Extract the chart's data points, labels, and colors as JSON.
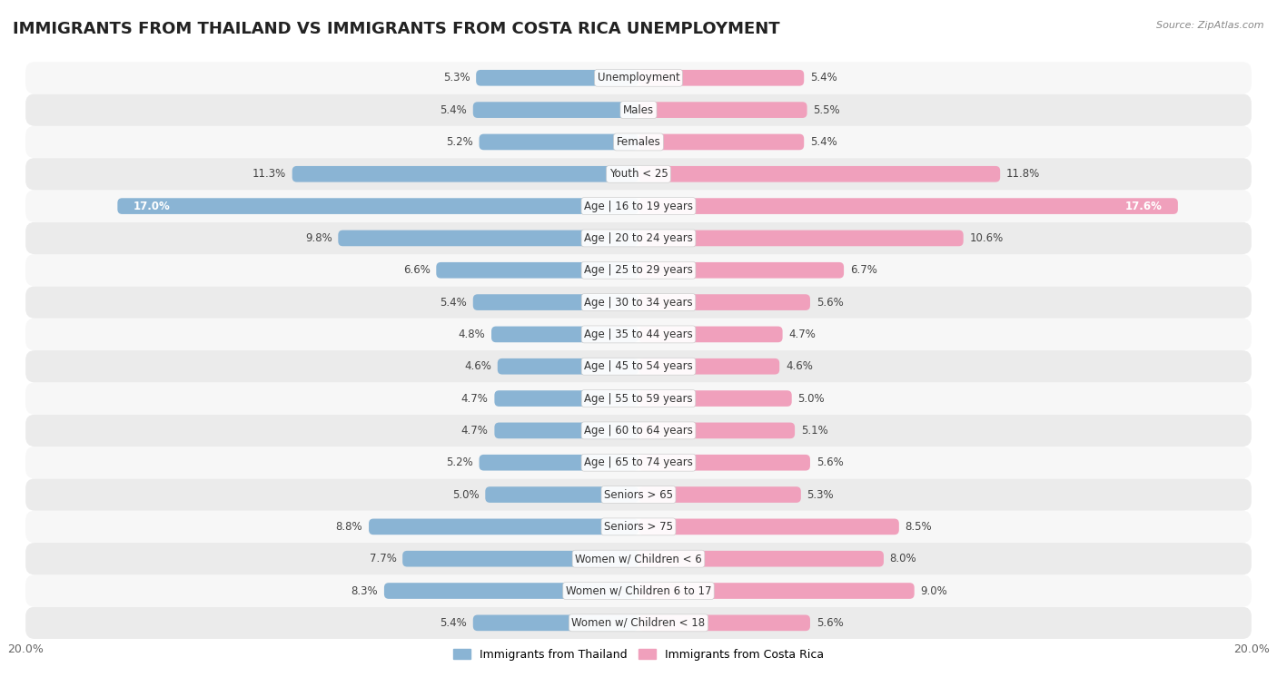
{
  "title": "IMMIGRANTS FROM THAILAND VS IMMIGRANTS FROM COSTA RICA UNEMPLOYMENT",
  "source": "Source: ZipAtlas.com",
  "categories": [
    "Unemployment",
    "Males",
    "Females",
    "Youth < 25",
    "Age | 16 to 19 years",
    "Age | 20 to 24 years",
    "Age | 25 to 29 years",
    "Age | 30 to 34 years",
    "Age | 35 to 44 years",
    "Age | 45 to 54 years",
    "Age | 55 to 59 years",
    "Age | 60 to 64 years",
    "Age | 65 to 74 years",
    "Seniors > 65",
    "Seniors > 75",
    "Women w/ Children < 6",
    "Women w/ Children 6 to 17",
    "Women w/ Children < 18"
  ],
  "thailand_values": [
    5.3,
    5.4,
    5.2,
    11.3,
    17.0,
    9.8,
    6.6,
    5.4,
    4.8,
    4.6,
    4.7,
    4.7,
    5.2,
    5.0,
    8.8,
    7.7,
    8.3,
    5.4
  ],
  "costa_rica_values": [
    5.4,
    5.5,
    5.4,
    11.8,
    17.6,
    10.6,
    6.7,
    5.6,
    4.7,
    4.6,
    5.0,
    5.1,
    5.6,
    5.3,
    8.5,
    8.0,
    9.0,
    5.6
  ],
  "thailand_color": "#8ab4d4",
  "costa_rica_color": "#f0a0bc",
  "thailand_label": "Immigrants from Thailand",
  "costa_rica_label": "Immigrants from Costa Rica",
  "xlim": 20.0,
  "background_color": "#ffffff",
  "row_color_odd": "#ebebeb",
  "row_color_even": "#f7f7f7",
  "title_fontsize": 13,
  "label_fontsize": 8.5,
  "value_fontsize": 8.5,
  "bar_height": 0.5
}
